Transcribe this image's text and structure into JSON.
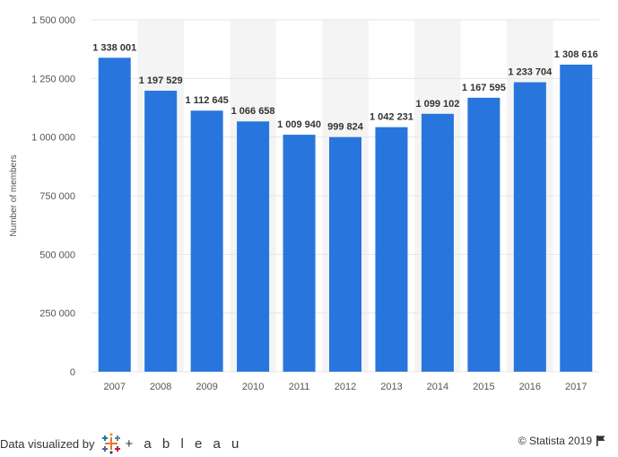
{
  "chart_data": {
    "type": "bar",
    "categories": [
      "2007",
      "2008",
      "2009",
      "2010",
      "2011",
      "2012",
      "2013",
      "2014",
      "2015",
      "2016",
      "2017"
    ],
    "values": [
      1338001,
      1197529,
      1112645,
      1066658,
      1009940,
      999824,
      1042231,
      1099102,
      1167595,
      1233704,
      1308616
    ],
    "data_labels": [
      "1 338 001",
      "1 197 529",
      "1 112 645",
      "1 066 658",
      "1 009 940",
      "999 824",
      "1 042 231",
      "1 099 102",
      "1 167 595",
      "1 233 704",
      "1 308 616"
    ],
    "ylabel": "Number of members",
    "ylim": [
      0,
      1500000
    ],
    "yticks": [
      0,
      250000,
      500000,
      750000,
      1000000,
      1250000,
      1500000
    ],
    "ytick_labels": [
      "0",
      "250 000",
      "500 000",
      "750 000",
      "1 000 000",
      "1 250 000",
      "1 500 000"
    ],
    "grid": true,
    "alternating_background": true,
    "bar_color": "#2876DD",
    "band_color": "#F4F4F4",
    "grid_color": "#E6E6E6"
  },
  "footer": {
    "visualized_by": "Data visualized by",
    "tableau_word": "+ a b l e a u",
    "copyright": "© Statista 2019"
  },
  "icons": {
    "tableau": "tableau-logo-icon",
    "flag": "flag-icon"
  }
}
